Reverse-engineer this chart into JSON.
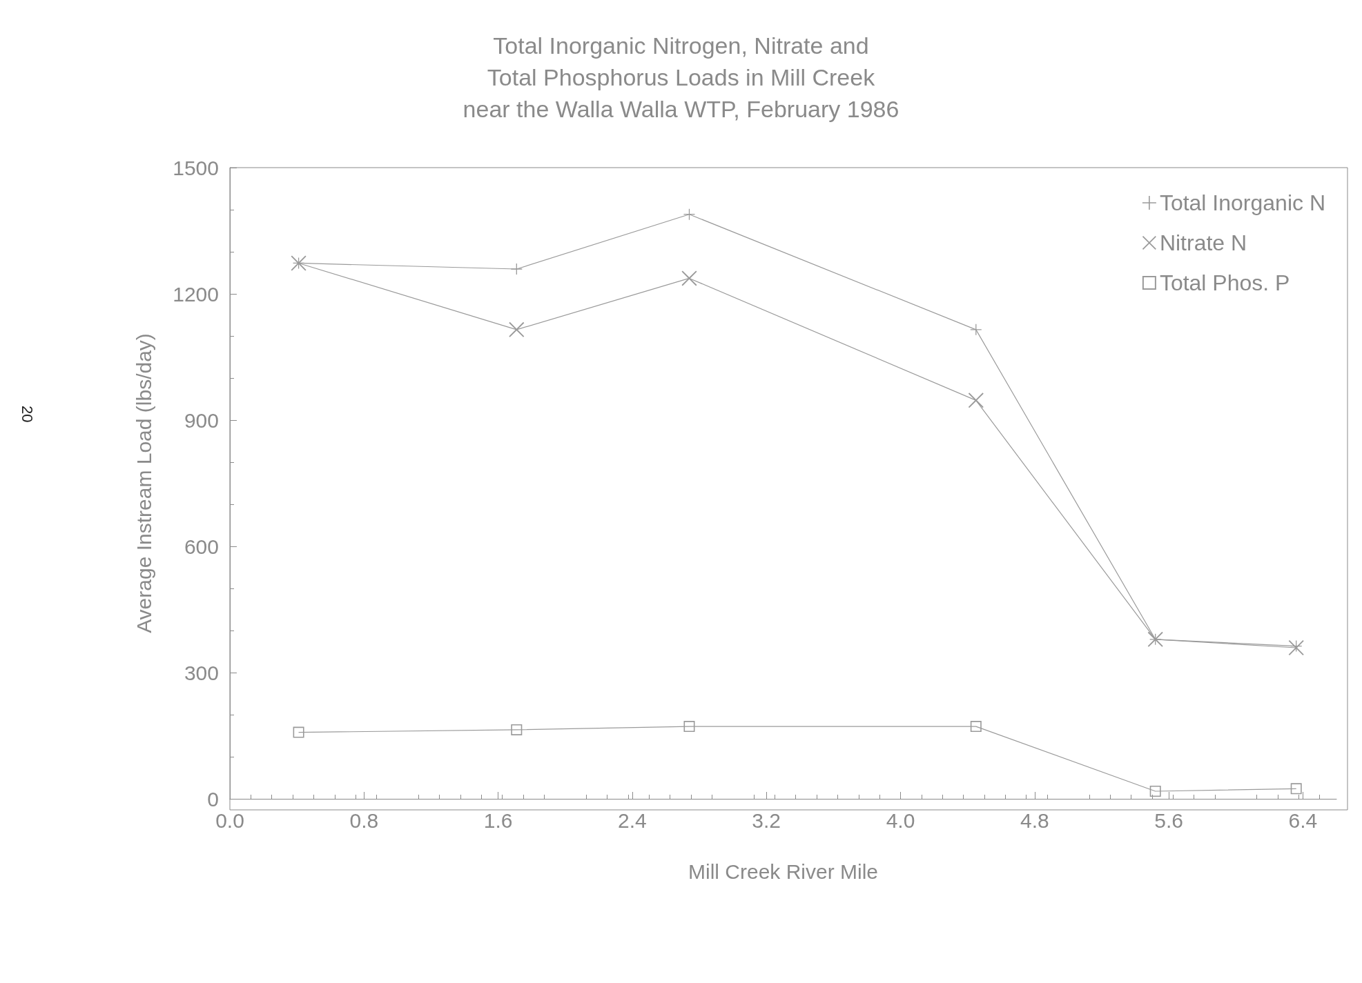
{
  "chart_data": {
    "type": "line",
    "title": "Total Inorganic Nitrogen, Nitrate and\nTotal Phosphorus Loads in Mill Creek\nnear the Walla Walla WTP, February 1986",
    "xlabel": "Mill Creek River Mile",
    "ylabel": "Average Instream Load (lbs/day)",
    "annotations": [
      "20"
    ],
    "xlim": [
      0,
      6.6
    ],
    "ylim": [
      0,
      1500
    ],
    "xticks": [
      {
        "value": 0,
        "label": "0.0"
      },
      {
        "value": 0.8,
        "label": "0.8"
      },
      {
        "value": 1.6,
        "label": "1.6"
      },
      {
        "value": 2.4,
        "label": "2.4"
      },
      {
        "value": 3.2,
        "label": "3.2"
      },
      {
        "value": 4,
        "label": "4.0"
      },
      {
        "value": 4.8,
        "label": "4.8"
      },
      {
        "value": 5.6,
        "label": "5.6"
      },
      {
        "value": 6.4,
        "label": "6.4"
      }
    ],
    "yticks": [
      0,
      300,
      600,
      900,
      1200,
      1500
    ],
    "x": [
      0.41,
      1.71,
      2.74,
      4.45,
      5.52,
      6.36
    ],
    "legend": "top right",
    "grid": false,
    "line_style": "solid",
    "series": [
      {
        "name": "Total Inorganic N",
        "color": "#9a9a9a",
        "marker": "plus",
        "values": [
          1273,
          1259,
          1389,
          1115,
          379,
          363
        ]
      },
      {
        "name": "Nitrate N",
        "color": "#9a9a9a",
        "marker": "cross",
        "values": [
          1273,
          1115,
          1237,
          947,
          379,
          359
        ]
      },
      {
        "name": "Total Phos. P",
        "color": "#9a9a9a",
        "marker": "square",
        "values": [
          158,
          164,
          172,
          172,
          18,
          24
        ]
      }
    ]
  }
}
